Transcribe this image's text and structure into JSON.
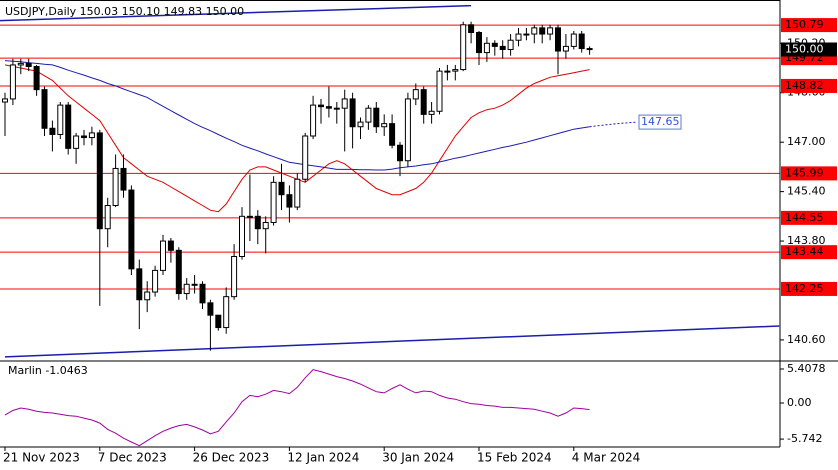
{
  "chart_data": [
    {
      "type": "candlestick",
      "title": "USDJPY,Daily  150.03 150.10 149.83 150.00",
      "categories": [
        "21 Nov 2023",
        null,
        null,
        null,
        null,
        null,
        null,
        null,
        null,
        null,
        null,
        null,
        "7 Dec 2023",
        null,
        null,
        null,
        null,
        null,
        null,
        null,
        null,
        null,
        null,
        null,
        "26 Dec 2023",
        null,
        null,
        null,
        null,
        null,
        null,
        null,
        null,
        null,
        null,
        null,
        "12 Jan 2024",
        null,
        null,
        null,
        null,
        null,
        null,
        null,
        null,
        null,
        null,
        null,
        "30 Jan 2024",
        null,
        null,
        null,
        null,
        null,
        null,
        null,
        null,
        null,
        null,
        null,
        "15 Feb 2024",
        null,
        null,
        null,
        null,
        null,
        null,
        null,
        null,
        null,
        null,
        null,
        "4 Mar 2024",
        null,
        null,
        null,
        null,
        null,
        null,
        null,
        null
      ],
      "open": [
        148.3,
        148.4,
        149.5,
        149.55,
        149.45,
        148.7,
        147.45,
        147.25,
        148.2,
        146.8,
        147.2,
        147.15,
        147.3,
        144.2,
        144.95,
        146.15,
        145.45,
        142.9,
        141.9,
        142.15,
        142.85,
        143.8,
        143.5,
        142.1,
        142.4,
        142.4,
        141.8,
        141.4,
        141.0,
        142.0,
        143.3,
        144.6,
        144.6,
        144.2,
        144.4,
        145.7,
        145.3,
        144.9,
        145.8,
        147.2,
        148.2,
        148.15,
        148.1,
        148.1,
        148.4,
        147.5,
        147.65,
        148.1,
        147.5,
        147.6,
        146.9,
        146.4,
        148.4,
        148.7,
        147.9,
        148.0,
        149.3,
        149.3,
        149.35,
        150.8,
        150.55,
        149.9,
        150.2,
        150.1,
        150.0,
        150.3,
        150.5,
        150.5,
        150.7,
        150.5,
        150.7,
        149.95,
        150.1,
        150.5,
        150.03,
        null,
        null,
        null,
        null,
        null,
        null
      ],
      "high": [
        148.6,
        149.7,
        149.7,
        149.7,
        149.5,
        148.8,
        147.7,
        148.3,
        148.3,
        147.3,
        147.4,
        147.5,
        147.4,
        145.2,
        146.6,
        146.6,
        145.6,
        143.2,
        142.5,
        143.0,
        144.0,
        143.9,
        143.6,
        142.6,
        142.7,
        142.5,
        141.9,
        141.4,
        142.3,
        143.7,
        144.9,
        145.95,
        144.8,
        144.6,
        145.9,
        146.3,
        145.6,
        146.0,
        147.3,
        148.5,
        148.4,
        148.8,
        148.3,
        148.7,
        148.6,
        147.8,
        148.2,
        148.3,
        147.9,
        147.9,
        147.0,
        148.6,
        148.9,
        148.8,
        148.3,
        149.4,
        149.5,
        149.5,
        150.9,
        150.9,
        150.6,
        150.4,
        150.3,
        150.3,
        150.5,
        150.7,
        150.7,
        150.8,
        150.8,
        150.8,
        150.8,
        150.5,
        150.6,
        150.6,
        150.1,
        null,
        null,
        null,
        null,
        null,
        null
      ],
      "low": [
        147.2,
        148.2,
        149.2,
        149.3,
        148.5,
        147.2,
        146.7,
        147.1,
        146.6,
        146.3,
        146.9,
        146.9,
        141.7,
        143.6,
        144.9,
        145.2,
        142.7,
        140.95,
        141.5,
        142.0,
        142.7,
        143.1,
        141.9,
        141.9,
        142.1,
        141.6,
        140.25,
        140.9,
        140.8,
        141.9,
        143.2,
        143.8,
        143.7,
        143.4,
        144.3,
        144.8,
        144.4,
        144.8,
        145.7,
        147.1,
        147.6,
        147.8,
        147.6,
        146.7,
        146.8,
        147.1,
        147.4,
        147.3,
        147.2,
        146.8,
        145.9,
        146.2,
        148.2,
        147.6,
        147.6,
        147.9,
        149.0,
        149.0,
        149.3,
        150.2,
        149.5,
        149.6,
        149.8,
        149.7,
        149.8,
        150.1,
        150.3,
        150.2,
        150.2,
        150.3,
        149.2,
        149.7,
        150.0,
        149.9,
        149.83,
        null,
        null,
        null,
        null,
        null,
        null
      ],
      "close": [
        148.4,
        149.5,
        149.55,
        149.45,
        148.7,
        147.45,
        147.25,
        148.2,
        146.8,
        147.2,
        147.15,
        147.3,
        144.2,
        144.95,
        146.15,
        145.45,
        142.9,
        141.9,
        142.15,
        142.85,
        143.8,
        143.5,
        142.1,
        142.4,
        142.4,
        141.8,
        141.4,
        141.0,
        142.0,
        143.3,
        144.6,
        144.6,
        144.2,
        144.4,
        145.7,
        145.3,
        144.9,
        145.8,
        147.2,
        148.2,
        148.15,
        148.1,
        148.1,
        148.4,
        147.5,
        147.65,
        148.1,
        147.5,
        147.6,
        146.9,
        146.4,
        148.4,
        148.7,
        147.9,
        148.0,
        149.3,
        149.3,
        149.35,
        150.8,
        150.55,
        149.9,
        150.2,
        150.1,
        150.0,
        150.3,
        150.5,
        150.5,
        150.7,
        150.5,
        150.7,
        149.95,
        150.1,
        150.5,
        150.03,
        150.0,
        null,
        null,
        null,
        null,
        null,
        null
      ],
      "series": [
        {
          "color": "#e00000",
          "values": [
            149.5,
            149.45,
            149.4,
            149.35,
            149.3,
            149.15,
            149.0,
            148.75,
            148.5,
            148.3,
            148.1,
            147.9,
            147.7,
            147.3,
            146.9,
            146.5,
            146.3,
            146.1,
            145.9,
            145.8,
            145.7,
            145.55,
            145.4,
            145.25,
            145.1,
            144.95,
            144.8,
            144.75,
            145.0,
            145.4,
            145.8,
            146.1,
            146.2,
            146.2,
            146.1,
            146.0,
            145.9,
            145.8,
            145.7,
            145.9,
            146.1,
            146.3,
            146.4,
            146.3,
            146.1,
            145.9,
            145.7,
            145.5,
            145.4,
            145.3,
            145.3,
            145.4,
            145.5,
            145.7,
            146.0,
            146.4,
            146.8,
            147.2,
            147.5,
            147.8,
            147.95,
            148.05,
            148.1,
            148.2,
            148.35,
            148.55,
            148.75,
            148.9,
            149.0,
            149.1,
            149.15,
            149.2,
            149.25,
            149.3,
            149.35,
            null,
            null,
            null,
            null,
            null,
            null
          ]
        },
        {
          "color": "#1c1cae",
          "values": [
            149.64,
            149.62,
            149.6,
            149.57,
            149.55,
            149.52,
            149.5,
            149.42,
            149.33,
            149.25,
            149.17,
            149.08,
            149.0,
            148.9,
            148.82,
            148.72,
            148.63,
            148.54,
            148.45,
            148.3,
            148.16,
            148.02,
            147.88,
            147.74,
            147.6,
            147.48,
            147.37,
            147.25,
            147.13,
            147.02,
            146.9,
            146.81,
            146.72,
            146.62,
            146.53,
            146.44,
            146.35,
            146.31,
            146.27,
            146.24,
            146.2,
            146.16,
            146.12,
            146.12,
            146.12,
            146.11,
            146.11,
            146.1,
            146.1,
            146.13,
            146.17,
            146.2,
            146.23,
            146.27,
            146.3,
            146.36,
            146.42,
            146.48,
            146.53,
            146.59,
            146.65,
            146.71,
            146.77,
            146.83,
            146.88,
            146.94,
            147.0,
            147.07,
            147.14,
            147.21,
            147.28,
            147.35,
            147.42,
            147.46,
            147.5,
            null,
            null,
            null,
            null,
            null,
            null
          ]
        },
        {
          "color": "#1c1cae",
          "dashed": true,
          "values": [
            null,
            null,
            null,
            null,
            null,
            null,
            null,
            null,
            null,
            null,
            null,
            null,
            null,
            null,
            null,
            null,
            null,
            null,
            null,
            null,
            null,
            null,
            null,
            null,
            null,
            null,
            null,
            null,
            null,
            null,
            null,
            null,
            null,
            null,
            null,
            null,
            null,
            null,
            null,
            null,
            null,
            null,
            null,
            null,
            null,
            null,
            null,
            null,
            null,
            null,
            null,
            null,
            null,
            null,
            null,
            null,
            null,
            null,
            null,
            null,
            null,
            null,
            null,
            null,
            null,
            null,
            null,
            null,
            null,
            null,
            null,
            null,
            null,
            null,
            147.5,
            147.53,
            147.56,
            147.59,
            147.61,
            147.63,
            147.65
          ]
        }
      ],
      "annotation": 147.65,
      "levels": {
        "color": "#ff0000",
        "values": [
          150.79,
          149.72,
          148.82,
          145.99,
          144.55,
          143.44,
          142.25
        ]
      },
      "trendlines": [
        {
          "color": "#1c1cae",
          "x": [
            -1,
            59
          ],
          "values": [
            150.93,
            151.42
          ]
        },
        {
          "color": "#1c1cae",
          "x": [
            0,
            98
          ],
          "values": [
            140.05,
            141.05
          ]
        }
      ],
      "price_label": {
        "value": 150.0,
        "label": "150.00"
      },
      "ylim": [
        139.95,
        151.44
      ],
      "yticks": [
        {
          "value": 140.6,
          "label": "140.60"
        },
        {
          "value": 143.8,
          "label": "143.80"
        },
        {
          "value": 145.4,
          "label": "145.40"
        },
        {
          "value": 147.0,
          "label": "147.00"
        },
        {
          "value": 148.6,
          "label": "148.60"
        },
        {
          "value": 150.2,
          "label": "150.20"
        }
      ]
    },
    {
      "type": "line",
      "title": "Marlin -1.0463",
      "series": [
        {
          "color": "#a000a0",
          "values": [
            -1.9,
            -1.2,
            -0.8,
            -1.0,
            -1.3,
            -1.5,
            -1.6,
            -1.8,
            -2.0,
            -2.1,
            -2.4,
            -2.7,
            -3.2,
            -4.2,
            -4.8,
            -5.6,
            -6.2,
            -6.8,
            -6.0,
            -5.2,
            -4.5,
            -4.0,
            -3.6,
            -3.4,
            -3.8,
            -4.3,
            -4.9,
            -4.5,
            -3.0,
            -1.6,
            0.2,
            1.2,
            1.0,
            1.4,
            2.0,
            1.8,
            1.5,
            2.5,
            4.0,
            5.3,
            5.0,
            4.6,
            4.2,
            3.9,
            3.5,
            3.0,
            2.4,
            1.8,
            1.6,
            2.3,
            2.9,
            2.2,
            1.6,
            1.9,
            1.8,
            1.2,
            0.8,
            0.6,
            0.2,
            -0.1,
            -0.2,
            -0.4,
            -0.5,
            -0.7,
            -0.7,
            -0.8,
            -0.9,
            -1.0,
            -1.3,
            -1.6,
            -2.1,
            -1.6,
            -0.8,
            -0.9,
            -1.0463,
            null,
            null,
            null,
            null,
            null,
            null
          ]
        }
      ],
      "ylim": [
        -7.0,
        6.36
      ],
      "yticks": [
        5.4078,
        {
          "value": 0,
          "label": "0.00"
        },
        -5.742
      ]
    }
  ]
}
